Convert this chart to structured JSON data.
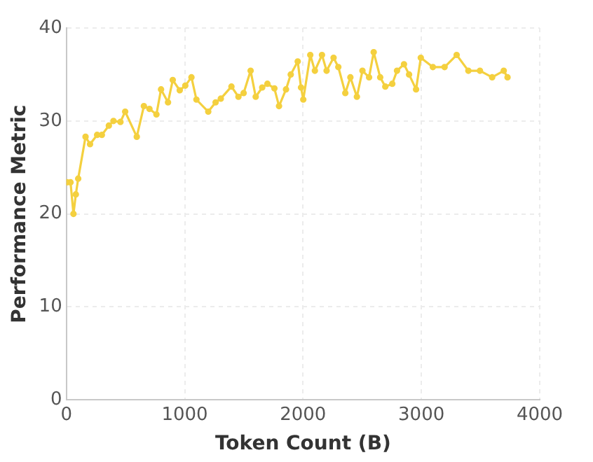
{
  "chart_data": {
    "type": "line",
    "xlabel": "Token Count (B)",
    "ylabel": "Performance Metric",
    "xlim": [
      0,
      4000
    ],
    "xticks": [
      0,
      1000,
      2000,
      3000,
      4000
    ],
    "ylim": [
      0,
      40
    ],
    "yticks": [
      0,
      10,
      20,
      30,
      40
    ],
    "grid": true,
    "legend": false,
    "marker": "circle",
    "line_style": "solid",
    "series": [
      {
        "color": "#f4d03f",
        "x": [
          5,
          35,
          60,
          80,
          100,
          162,
          200,
          260,
          300,
          359,
          398,
          457,
          497,
          595,
          655,
          702,
          761,
          800,
          859,
          899,
          958,
          1005,
          1057,
          1099,
          1199,
          1261,
          1305,
          1395,
          1454,
          1498,
          1557,
          1600,
          1655,
          1699,
          1758,
          1797,
          1856,
          1896,
          1955,
          1983,
          2002,
          2061,
          2100,
          2160,
          2199,
          2258,
          2298,
          2357,
          2400,
          2455,
          2502,
          2558,
          2597,
          2652,
          2695,
          2754,
          2794,
          2853,
          2896,
          2955,
          2995,
          3097,
          3196,
          3298,
          3397,
          3495,
          3598,
          3696,
          3728
        ],
        "values": [
          23.4,
          23.4,
          20.0,
          22.1,
          23.8,
          28.3,
          27.5,
          28.5,
          28.5,
          29.5,
          30.0,
          29.9,
          31.0,
          28.3,
          31.6,
          31.3,
          30.7,
          33.4,
          32.0,
          34.4,
          33.3,
          33.8,
          34.7,
          32.3,
          31.0,
          32.0,
          32.4,
          33.7,
          32.6,
          33.0,
          35.4,
          32.6,
          33.6,
          34.0,
          33.5,
          31.6,
          33.4,
          35.0,
          36.4,
          33.6,
          32.3,
          37.1,
          35.4,
          37.1,
          35.4,
          36.8,
          35.8,
          33.0,
          34.7,
          32.6,
          35.4,
          34.7,
          37.4,
          34.7,
          33.7,
          34.0,
          35.4,
          36.1,
          35.0,
          33.4,
          36.8,
          35.8,
          35.8,
          37.1,
          35.4,
          35.4,
          34.7,
          35.4,
          34.7
        ]
      }
    ]
  }
}
